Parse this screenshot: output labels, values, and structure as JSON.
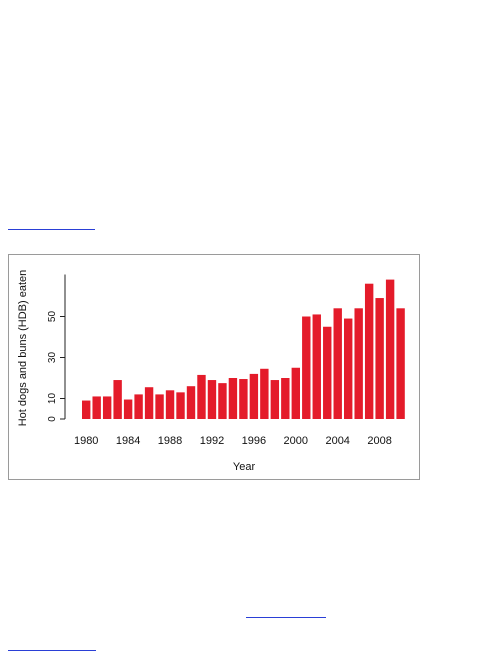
{
  "colors": {
    "bar": "#e41b2a",
    "link": "#2a3fd6",
    "frame": "#9a9a9a"
  },
  "chart_data": {
    "type": "bar",
    "title": "",
    "xlabel": "Year",
    "ylabel": "Hot dogs and buns (HDB) eaten",
    "categories": [
      1980,
      1981,
      1982,
      1983,
      1984,
      1985,
      1986,
      1987,
      1988,
      1989,
      1990,
      1991,
      1992,
      1993,
      1994,
      1995,
      1996,
      1997,
      1998,
      1999,
      2000,
      2001,
      2002,
      2003,
      2004,
      2005,
      2006,
      2007,
      2008,
      2009,
      2010
    ],
    "values": [
      9,
      11,
      11,
      19,
      9.5,
      12,
      15.5,
      12,
      14,
      13,
      16,
      21.5,
      19,
      17.5,
      20,
      19.5,
      22,
      24.5,
      19,
      20,
      25,
      50,
      51,
      45,
      54,
      49,
      54,
      66,
      59,
      68,
      54
    ],
    "ylim": [
      0,
      70
    ],
    "yticks": [
      0,
      10,
      30,
      50
    ],
    "xtick_labels": [
      "1980",
      "1984",
      "1988",
      "1992",
      "1996",
      "2000",
      "2004",
      "2008"
    ],
    "grid": false,
    "legend": "none"
  }
}
